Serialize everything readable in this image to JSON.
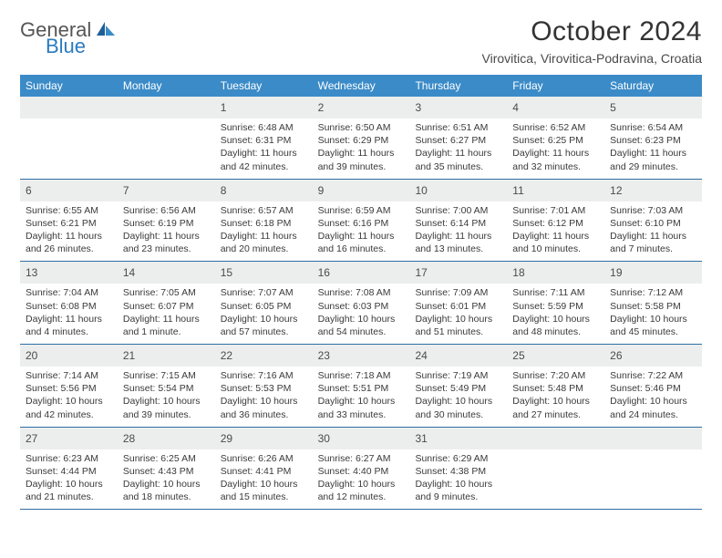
{
  "brand": {
    "text1": "General",
    "text2": "Blue",
    "color1": "#555555",
    "color2": "#2b7bbf"
  },
  "title": "October 2024",
  "location": "Virovitica, Virovitica-Podravina, Croatia",
  "colors": {
    "header_bg": "#3b8bc8",
    "header_text": "#ffffff",
    "daynum_bg": "#eceeee",
    "week_border": "#2e6da4",
    "body_text": "#3a3a3a"
  },
  "days_of_week": [
    "Sunday",
    "Monday",
    "Tuesday",
    "Wednesday",
    "Thursday",
    "Friday",
    "Saturday"
  ],
  "weeks": [
    [
      {
        "n": "",
        "sunrise": "",
        "sunset": "",
        "daylight": ""
      },
      {
        "n": "",
        "sunrise": "",
        "sunset": "",
        "daylight": ""
      },
      {
        "n": "1",
        "sunrise": "Sunrise: 6:48 AM",
        "sunset": "Sunset: 6:31 PM",
        "daylight": "Daylight: 11 hours and 42 minutes."
      },
      {
        "n": "2",
        "sunrise": "Sunrise: 6:50 AM",
        "sunset": "Sunset: 6:29 PM",
        "daylight": "Daylight: 11 hours and 39 minutes."
      },
      {
        "n": "3",
        "sunrise": "Sunrise: 6:51 AM",
        "sunset": "Sunset: 6:27 PM",
        "daylight": "Daylight: 11 hours and 35 minutes."
      },
      {
        "n": "4",
        "sunrise": "Sunrise: 6:52 AM",
        "sunset": "Sunset: 6:25 PM",
        "daylight": "Daylight: 11 hours and 32 minutes."
      },
      {
        "n": "5",
        "sunrise": "Sunrise: 6:54 AM",
        "sunset": "Sunset: 6:23 PM",
        "daylight": "Daylight: 11 hours and 29 minutes."
      }
    ],
    [
      {
        "n": "6",
        "sunrise": "Sunrise: 6:55 AM",
        "sunset": "Sunset: 6:21 PM",
        "daylight": "Daylight: 11 hours and 26 minutes."
      },
      {
        "n": "7",
        "sunrise": "Sunrise: 6:56 AM",
        "sunset": "Sunset: 6:19 PM",
        "daylight": "Daylight: 11 hours and 23 minutes."
      },
      {
        "n": "8",
        "sunrise": "Sunrise: 6:57 AM",
        "sunset": "Sunset: 6:18 PM",
        "daylight": "Daylight: 11 hours and 20 minutes."
      },
      {
        "n": "9",
        "sunrise": "Sunrise: 6:59 AM",
        "sunset": "Sunset: 6:16 PM",
        "daylight": "Daylight: 11 hours and 16 minutes."
      },
      {
        "n": "10",
        "sunrise": "Sunrise: 7:00 AM",
        "sunset": "Sunset: 6:14 PM",
        "daylight": "Daylight: 11 hours and 13 minutes."
      },
      {
        "n": "11",
        "sunrise": "Sunrise: 7:01 AM",
        "sunset": "Sunset: 6:12 PM",
        "daylight": "Daylight: 11 hours and 10 minutes."
      },
      {
        "n": "12",
        "sunrise": "Sunrise: 7:03 AM",
        "sunset": "Sunset: 6:10 PM",
        "daylight": "Daylight: 11 hours and 7 minutes."
      }
    ],
    [
      {
        "n": "13",
        "sunrise": "Sunrise: 7:04 AM",
        "sunset": "Sunset: 6:08 PM",
        "daylight": "Daylight: 11 hours and 4 minutes."
      },
      {
        "n": "14",
        "sunrise": "Sunrise: 7:05 AM",
        "sunset": "Sunset: 6:07 PM",
        "daylight": "Daylight: 11 hours and 1 minute."
      },
      {
        "n": "15",
        "sunrise": "Sunrise: 7:07 AM",
        "sunset": "Sunset: 6:05 PM",
        "daylight": "Daylight: 10 hours and 57 minutes."
      },
      {
        "n": "16",
        "sunrise": "Sunrise: 7:08 AM",
        "sunset": "Sunset: 6:03 PM",
        "daylight": "Daylight: 10 hours and 54 minutes."
      },
      {
        "n": "17",
        "sunrise": "Sunrise: 7:09 AM",
        "sunset": "Sunset: 6:01 PM",
        "daylight": "Daylight: 10 hours and 51 minutes."
      },
      {
        "n": "18",
        "sunrise": "Sunrise: 7:11 AM",
        "sunset": "Sunset: 5:59 PM",
        "daylight": "Daylight: 10 hours and 48 minutes."
      },
      {
        "n": "19",
        "sunrise": "Sunrise: 7:12 AM",
        "sunset": "Sunset: 5:58 PM",
        "daylight": "Daylight: 10 hours and 45 minutes."
      }
    ],
    [
      {
        "n": "20",
        "sunrise": "Sunrise: 7:14 AM",
        "sunset": "Sunset: 5:56 PM",
        "daylight": "Daylight: 10 hours and 42 minutes."
      },
      {
        "n": "21",
        "sunrise": "Sunrise: 7:15 AM",
        "sunset": "Sunset: 5:54 PM",
        "daylight": "Daylight: 10 hours and 39 minutes."
      },
      {
        "n": "22",
        "sunrise": "Sunrise: 7:16 AM",
        "sunset": "Sunset: 5:53 PM",
        "daylight": "Daylight: 10 hours and 36 minutes."
      },
      {
        "n": "23",
        "sunrise": "Sunrise: 7:18 AM",
        "sunset": "Sunset: 5:51 PM",
        "daylight": "Daylight: 10 hours and 33 minutes."
      },
      {
        "n": "24",
        "sunrise": "Sunrise: 7:19 AM",
        "sunset": "Sunset: 5:49 PM",
        "daylight": "Daylight: 10 hours and 30 minutes."
      },
      {
        "n": "25",
        "sunrise": "Sunrise: 7:20 AM",
        "sunset": "Sunset: 5:48 PM",
        "daylight": "Daylight: 10 hours and 27 minutes."
      },
      {
        "n": "26",
        "sunrise": "Sunrise: 7:22 AM",
        "sunset": "Sunset: 5:46 PM",
        "daylight": "Daylight: 10 hours and 24 minutes."
      }
    ],
    [
      {
        "n": "27",
        "sunrise": "Sunrise: 6:23 AM",
        "sunset": "Sunset: 4:44 PM",
        "daylight": "Daylight: 10 hours and 21 minutes."
      },
      {
        "n": "28",
        "sunrise": "Sunrise: 6:25 AM",
        "sunset": "Sunset: 4:43 PM",
        "daylight": "Daylight: 10 hours and 18 minutes."
      },
      {
        "n": "29",
        "sunrise": "Sunrise: 6:26 AM",
        "sunset": "Sunset: 4:41 PM",
        "daylight": "Daylight: 10 hours and 15 minutes."
      },
      {
        "n": "30",
        "sunrise": "Sunrise: 6:27 AM",
        "sunset": "Sunset: 4:40 PM",
        "daylight": "Daylight: 10 hours and 12 minutes."
      },
      {
        "n": "31",
        "sunrise": "Sunrise: 6:29 AM",
        "sunset": "Sunset: 4:38 PM",
        "daylight": "Daylight: 10 hours and 9 minutes."
      },
      {
        "n": "",
        "sunrise": "",
        "sunset": "",
        "daylight": ""
      },
      {
        "n": "",
        "sunrise": "",
        "sunset": "",
        "daylight": ""
      }
    ]
  ]
}
